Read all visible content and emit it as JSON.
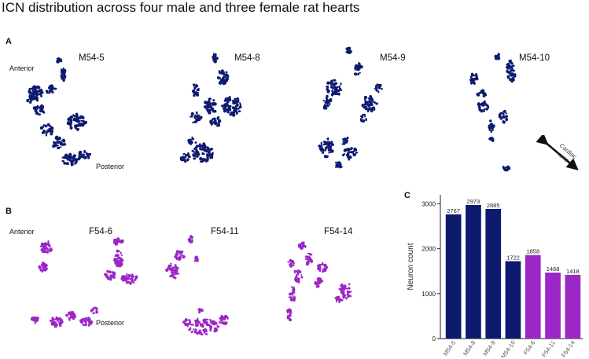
{
  "figure": {
    "title": "ICN distribution across four male and three female rat hearts",
    "panel_a": "A",
    "panel_b": "B",
    "panel_c": "C",
    "anterior": "Anterior",
    "posterior": "Posterior",
    "axis_text_1": "Cardiac",
    "axis_text_2": "axis"
  },
  "colors": {
    "male": "#0d1a6e",
    "female": "#9b27c6",
    "axis": "#222222"
  },
  "hearts_male": [
    {
      "id": "M54-5"
    },
    {
      "id": "M54-8"
    },
    {
      "id": "M54-9"
    },
    {
      "id": "M54-10"
    }
  ],
  "hearts_female": [
    {
      "id": "F54-6"
    },
    {
      "id": "F54-11"
    },
    {
      "id": "F54-14"
    }
  ],
  "chart_data": {
    "type": "bar",
    "categories": [
      "M54-5",
      "M54-8",
      "M54-9",
      "M54-10",
      "F54-6",
      "F54-11",
      "F54-14"
    ],
    "values": [
      2767,
      2973,
      2885,
      1722,
      1858,
      1468,
      1418
    ],
    "bar_colors": [
      "#0d1a6e",
      "#0d1a6e",
      "#0d1a6e",
      "#0d1a6e",
      "#9b27c6",
      "#9b27c6",
      "#9b27c6"
    ],
    "ylabel": "Neuron count",
    "yticks": [
      0,
      1000,
      2000,
      3000
    ],
    "ylim": [
      0,
      3200
    ],
    "data_labels": true,
    "grid": false
  }
}
